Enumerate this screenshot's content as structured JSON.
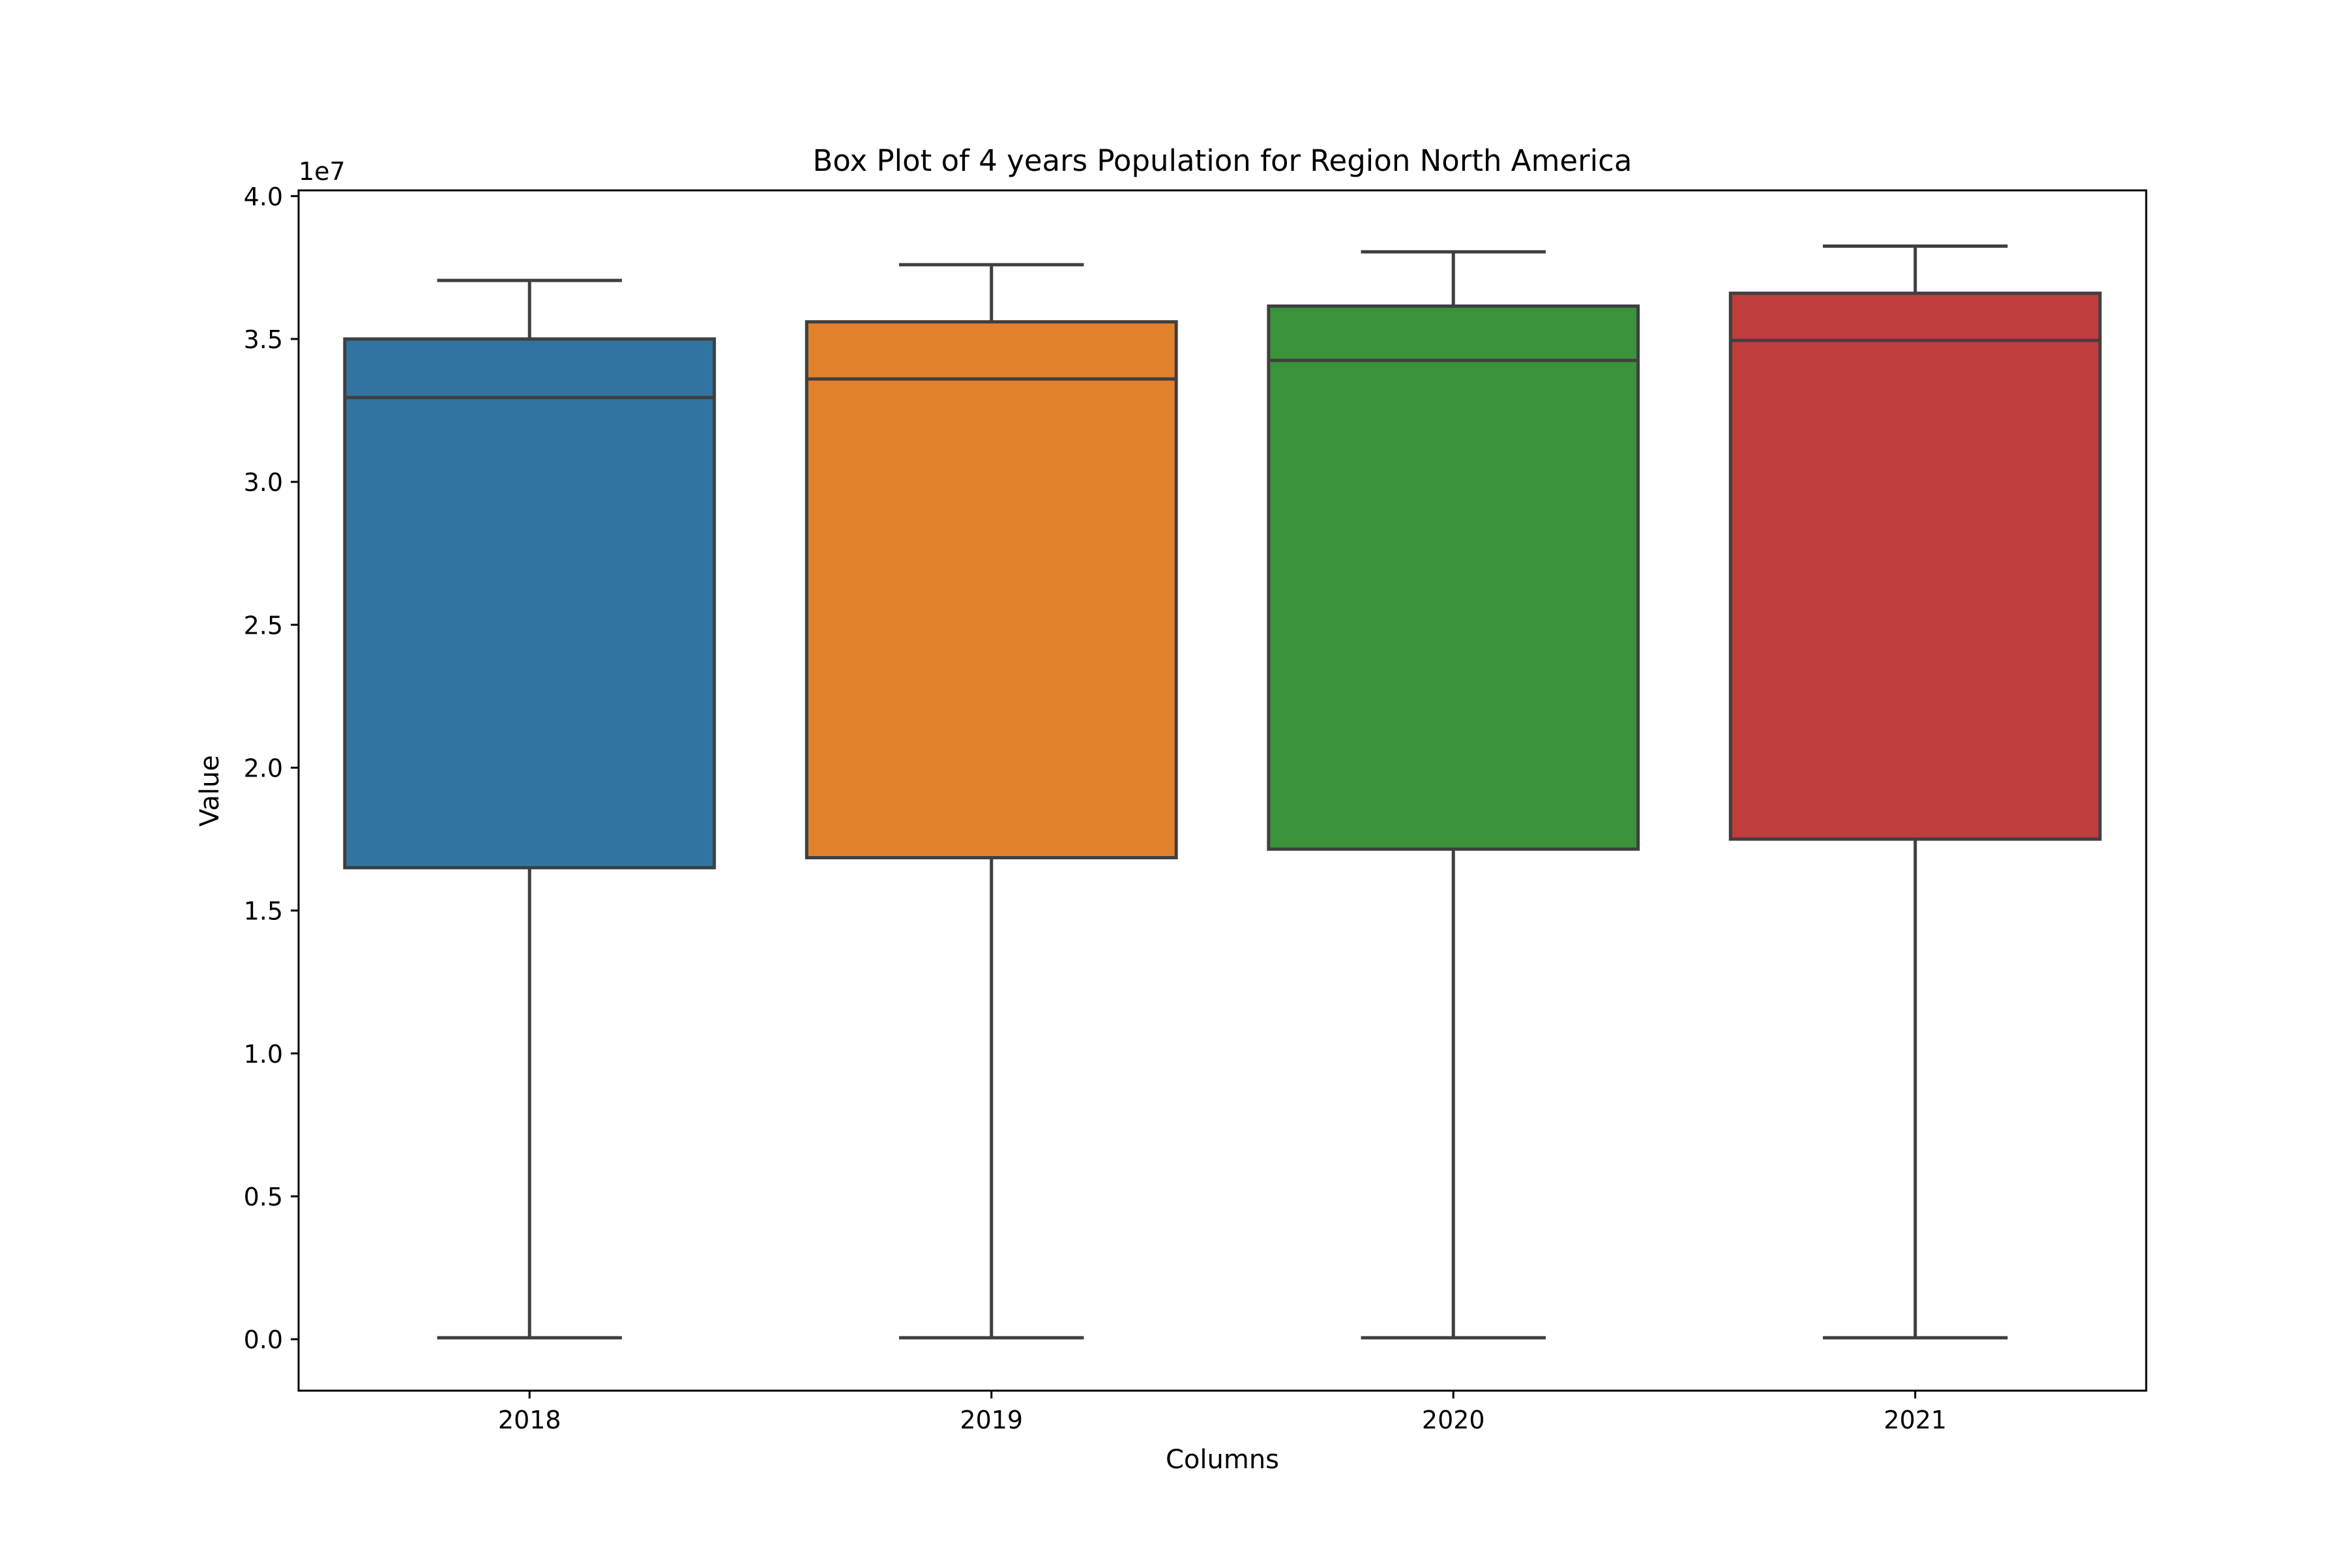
{
  "chart_data": {
    "type": "box",
    "title": "Box Plot of 4 years Population for Region North America",
    "xlabel": "Columns",
    "ylabel": "Value",
    "y_offset_label": "1e7",
    "ylim": [
      -1800000,
      40200000
    ],
    "yticks": [
      0,
      5000000,
      10000000,
      15000000,
      20000000,
      25000000,
      30000000,
      35000000,
      40000000
    ],
    "ytick_labels": [
      "0.0",
      "0.5",
      "1.0",
      "1.5",
      "2.0",
      "2.5",
      "3.0",
      "3.5",
      "4.0"
    ],
    "categories": [
      "2018",
      "2019",
      "2020",
      "2021"
    ],
    "boxes": [
      {
        "category": "2018",
        "whisker_low": 50000,
        "q1": 16500000,
        "median": 32950000,
        "q3": 35000000,
        "whisker_high": 37050000,
        "color": "#3274a1"
      },
      {
        "category": "2019",
        "whisker_low": 50000,
        "q1": 16850000,
        "median": 33600000,
        "q3": 35600000,
        "whisker_high": 37600000,
        "color": "#e1812c"
      },
      {
        "category": "2020",
        "whisker_low": 50000,
        "q1": 17150000,
        "median": 34250000,
        "q3": 36150000,
        "whisker_high": 38050000,
        "color": "#3a923a"
      },
      {
        "category": "2021",
        "whisker_low": 50000,
        "q1": 17500000,
        "median": 34950000,
        "q3": 36600000,
        "whisker_high": 38250000,
        "color": "#c03d3e"
      }
    ],
    "grid": false,
    "legend": "none"
  }
}
